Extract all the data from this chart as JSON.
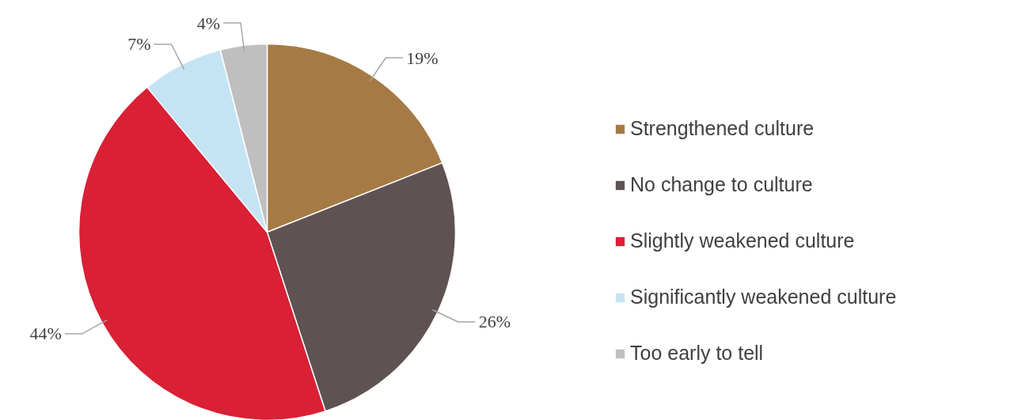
{
  "chart_data": {
    "type": "pie",
    "categories": [
      "Strengthened culture",
      "No change to culture",
      "Slightly weakened culture",
      "Significantly weakened culture",
      "Too early to tell"
    ],
    "values": [
      19,
      26,
      44,
      7,
      4
    ],
    "colors": [
      "#a67a45",
      "#5e5352",
      "#d92035",
      "#c5e4f3",
      "#bfbfbf"
    ],
    "value_labels": [
      "19%",
      "26%",
      "44%",
      "7%",
      "4%"
    ],
    "legend": "right"
  }
}
